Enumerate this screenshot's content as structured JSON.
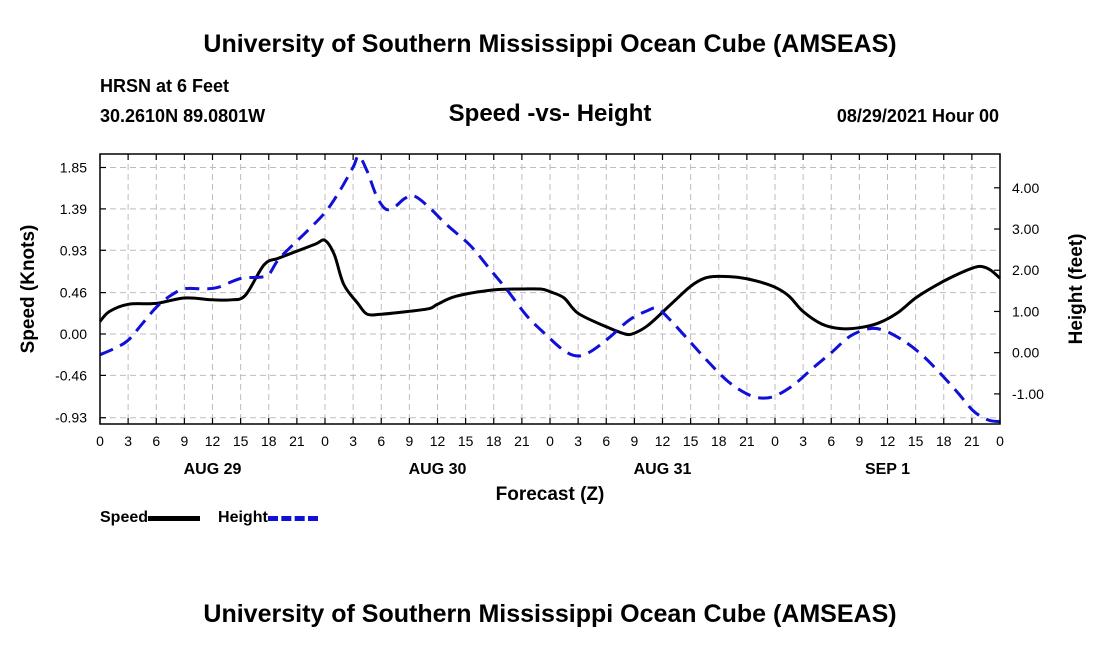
{
  "header": {
    "title": "University of Southern Mississippi Ocean Cube (AMSEAS)",
    "station": "HRSN at 6 Feet",
    "coords": "30.2610N  89.0801W",
    "subtitle": "Speed -vs- Height",
    "datetime": "08/29/2021 Hour 00"
  },
  "footer": {
    "title": "University of Southern Mississippi Ocean Cube (AMSEAS)"
  },
  "legend": {
    "speed_label": "Speed",
    "height_label": "Height"
  },
  "colors": {
    "speed": "#000000",
    "height": "#1010d8",
    "grid": "#bdbdbd"
  },
  "chart_data": {
    "type": "line",
    "title": "Speed -vs- Height",
    "xlabel": "Forecast (Z)",
    "ylabel_left": "Speed (Knots)",
    "ylabel_right": "Height (feet)",
    "x_range_hours": [
      0,
      96
    ],
    "x_ticks": [
      {
        "hour": 0,
        "label": "0"
      },
      {
        "hour": 3,
        "label": "3"
      },
      {
        "hour": 6,
        "label": "6"
      },
      {
        "hour": 9,
        "label": "9"
      },
      {
        "hour": 12,
        "label": "12"
      },
      {
        "hour": 15,
        "label": "15"
      },
      {
        "hour": 18,
        "label": "18"
      },
      {
        "hour": 21,
        "label": "21"
      },
      {
        "hour": 24,
        "label": "0"
      },
      {
        "hour": 27,
        "label": "3"
      },
      {
        "hour": 30,
        "label": "6"
      },
      {
        "hour": 33,
        "label": "9"
      },
      {
        "hour": 36,
        "label": "12"
      },
      {
        "hour": 39,
        "label": "15"
      },
      {
        "hour": 42,
        "label": "18"
      },
      {
        "hour": 45,
        "label": "21"
      },
      {
        "hour": 48,
        "label": "0"
      },
      {
        "hour": 51,
        "label": "3"
      },
      {
        "hour": 54,
        "label": "6"
      },
      {
        "hour": 57,
        "label": "9"
      },
      {
        "hour": 60,
        "label": "12"
      },
      {
        "hour": 63,
        "label": "15"
      },
      {
        "hour": 66,
        "label": "18"
      },
      {
        "hour": 69,
        "label": "21"
      },
      {
        "hour": 72,
        "label": "0"
      },
      {
        "hour": 75,
        "label": "3"
      },
      {
        "hour": 78,
        "label": "6"
      },
      {
        "hour": 81,
        "label": "9"
      },
      {
        "hour": 84,
        "label": "12"
      },
      {
        "hour": 87,
        "label": "15"
      },
      {
        "hour": 90,
        "label": "18"
      },
      {
        "hour": 93,
        "label": "21"
      },
      {
        "hour": 96,
        "label": "0"
      }
    ],
    "day_labels": [
      {
        "hour": 12,
        "label": "AUG 29"
      },
      {
        "hour": 36,
        "label": "AUG 30"
      },
      {
        "hour": 60,
        "label": "AUG 31"
      },
      {
        "hour": 84,
        "label": "SEP 1"
      }
    ],
    "speed_axis": {
      "range": [
        -1.0,
        2.0
      ],
      "ticks": [
        {
          "value": -0.93,
          "label": "-0.93"
        },
        {
          "value": -0.46,
          "label": "-0.46"
        },
        {
          "value": 0.0,
          "label": "0.00"
        },
        {
          "value": 0.46,
          "label": "0.46"
        },
        {
          "value": 0.93,
          "label": "0.93"
        },
        {
          "value": 1.39,
          "label": "1.39"
        },
        {
          "value": 1.85,
          "label": "1.85"
        }
      ]
    },
    "height_axis": {
      "range": [
        -1.73,
        4.82
      ],
      "ticks": [
        {
          "value": -1.0,
          "label": "-1.00"
        },
        {
          "value": 0.0,
          "label": "0.00"
        },
        {
          "value": 1.0,
          "label": "1.00"
        },
        {
          "value": 2.0,
          "label": "2.00"
        },
        {
          "value": 3.0,
          "label": "3.00"
        },
        {
          "value": 4.0,
          "label": "4.00"
        }
      ]
    },
    "series": [
      {
        "name": "Speed",
        "axis": "left",
        "style": "solid",
        "points": [
          [
            0,
            0.14
          ],
          [
            1,
            0.25
          ],
          [
            3,
            0.33
          ],
          [
            6,
            0.34
          ],
          [
            9,
            0.4
          ],
          [
            12,
            0.38
          ],
          [
            14,
            0.38
          ],
          [
            15.5,
            0.43
          ],
          [
            17.5,
            0.77
          ],
          [
            19,
            0.84
          ],
          [
            21,
            0.92
          ],
          [
            23,
            1.0
          ],
          [
            24,
            1.04
          ],
          [
            25,
            0.88
          ],
          [
            26,
            0.55
          ],
          [
            27.5,
            0.34
          ],
          [
            28.5,
            0.22
          ],
          [
            30,
            0.22
          ],
          [
            32,
            0.24
          ],
          [
            35,
            0.28
          ],
          [
            36,
            0.33
          ],
          [
            38,
            0.42
          ],
          [
            42,
            0.49
          ],
          [
            45,
            0.5
          ],
          [
            47,
            0.5
          ],
          [
            48,
            0.47
          ],
          [
            49.5,
            0.4
          ],
          [
            51,
            0.23
          ],
          [
            54,
            0.08
          ],
          [
            56,
            0.0
          ],
          [
            57,
            0.01
          ],
          [
            58.5,
            0.1
          ],
          [
            61,
            0.34
          ],
          [
            63,
            0.53
          ],
          [
            64.5,
            0.62
          ],
          [
            66,
            0.64
          ],
          [
            68,
            0.63
          ],
          [
            70,
            0.59
          ],
          [
            72,
            0.52
          ],
          [
            73.5,
            0.42
          ],
          [
            75,
            0.25
          ],
          [
            77,
            0.11
          ],
          [
            79,
            0.06
          ],
          [
            81,
            0.07
          ],
          [
            83,
            0.12
          ],
          [
            85,
            0.23
          ],
          [
            87,
            0.4
          ],
          [
            89,
            0.53
          ],
          [
            91,
            0.64
          ],
          [
            93,
            0.73
          ],
          [
            94,
            0.75
          ],
          [
            95,
            0.71
          ],
          [
            96,
            0.62
          ]
        ]
      },
      {
        "name": "Height",
        "axis": "right",
        "style": "dashed",
        "points": [
          [
            0,
            -0.05
          ],
          [
            1.5,
            0.1
          ],
          [
            3,
            0.3
          ],
          [
            4.5,
            0.7
          ],
          [
            6,
            1.1
          ],
          [
            7.5,
            1.38
          ],
          [
            9,
            1.55
          ],
          [
            11,
            1.55
          ],
          [
            12.5,
            1.58
          ],
          [
            15,
            1.8
          ],
          [
            17,
            1.83
          ],
          [
            18,
            1.9
          ],
          [
            19,
            2.25
          ],
          [
            20.5,
            2.6
          ],
          [
            22,
            2.93
          ],
          [
            24,
            3.4
          ],
          [
            25.5,
            3.9
          ],
          [
            27,
            4.5
          ],
          [
            27.6,
            4.77
          ],
          [
            28.5,
            4.4
          ],
          [
            29.5,
            3.8
          ],
          [
            30.5,
            3.48
          ],
          [
            31.5,
            3.55
          ],
          [
            32.5,
            3.74
          ],
          [
            33.5,
            3.8
          ],
          [
            35,
            3.55
          ],
          [
            37,
            3.1
          ],
          [
            39.5,
            2.6
          ],
          [
            41.5,
            2.05
          ],
          [
            43.5,
            1.5
          ],
          [
            45.5,
            0.9
          ],
          [
            47.5,
            0.45
          ],
          [
            49.5,
            0.05
          ],
          [
            51,
            -0.08
          ],
          [
            52.5,
            0.05
          ],
          [
            54.5,
            0.4
          ],
          [
            56.5,
            0.8
          ],
          [
            58.5,
            1.03
          ],
          [
            59.5,
            1.07
          ],
          [
            61,
            0.75
          ],
          [
            63,
            0.25
          ],
          [
            65,
            -0.25
          ],
          [
            67,
            -0.7
          ],
          [
            69,
            -1.0
          ],
          [
            70.5,
            -1.1
          ],
          [
            72,
            -1.05
          ],
          [
            74,
            -0.78
          ],
          [
            76,
            -0.38
          ],
          [
            78,
            0.0
          ],
          [
            80,
            0.4
          ],
          [
            82,
            0.58
          ],
          [
            83.5,
            0.55
          ],
          [
            85.5,
            0.32
          ],
          [
            87.5,
            -0.02
          ],
          [
            89.5,
            -0.47
          ],
          [
            91.5,
            -0.97
          ],
          [
            93,
            -1.38
          ],
          [
            94,
            -1.55
          ],
          [
            95,
            -1.65
          ],
          [
            96,
            -1.67
          ]
        ]
      }
    ]
  }
}
